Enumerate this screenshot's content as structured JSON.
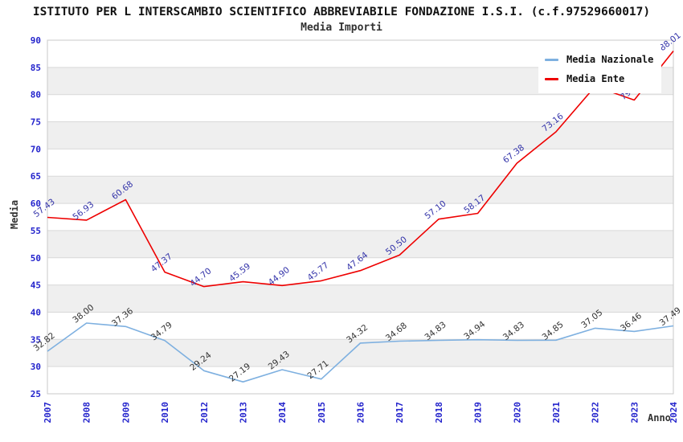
{
  "header": {
    "title": "ISTITUTO PER L INTERSCAMBIO SCIENTIFICO ABBREVIABILE FONDAZIONE I.S.I. (c.f.97529660017)",
    "subtitle": "Media Importi"
  },
  "axes": {
    "y_title": "Media",
    "x_title": "Anno"
  },
  "legend": [
    {
      "label": "Media Nazionale",
      "color": "#7eb0e0"
    },
    {
      "label": "Media Ente",
      "color": "#ee0000"
    }
  ],
  "chart_data": {
    "type": "line",
    "title": "ISTITUTO PER L INTERSCAMBIO SCIENTIFICO ABBREVIABILE FONDAZIONE I.S.I. (c.f.97529660017)",
    "subtitle": "Media Importi",
    "xlabel": "Anno",
    "ylabel": "Media",
    "ylim": [
      25,
      90
    ],
    "ytick_step": 5,
    "grid": "horizontal",
    "background_bands": "alternating white/#efefef per 5 units",
    "legend_position": "top-right",
    "categories": [
      "2007",
      "2008",
      "2009",
      "2010",
      "2012",
      "2013",
      "2014",
      "2015",
      "2016",
      "2017",
      "2018",
      "2019",
      "2020",
      "2021",
      "2022",
      "2023",
      "2024"
    ],
    "series": [
      {
        "name": "Media Nazionale",
        "color": "#7eb0e0",
        "label_color": "#333333",
        "values": [
          32.82,
          38.0,
          37.36,
          34.79,
          29.24,
          27.19,
          29.43,
          27.71,
          34.32,
          34.68,
          34.83,
          34.94,
          34.83,
          34.85,
          37.05,
          36.46,
          37.49
        ],
        "labels": [
          "32.82",
          "38.00",
          "37.36",
          "34.79",
          "29.24",
          "27.19",
          "29.43",
          "27.71",
          "34.32",
          "34.68",
          "34.83",
          "34.94",
          "34.83",
          "34.85",
          "37.05",
          "36.46",
          "37.49"
        ]
      },
      {
        "name": "Media Ente",
        "color": "#ee0000",
        "label_color": "#3535aa",
        "values": [
          57.43,
          56.93,
          60.68,
          47.37,
          44.7,
          45.59,
          44.9,
          45.77,
          47.64,
          50.5,
          57.1,
          58.17,
          67.38,
          73.16,
          81.5,
          79.0,
          88.01
        ],
        "labels": [
          "57.43",
          "56.93",
          "60.68",
          "47.37",
          "44.70",
          "45.59",
          "44.90",
          "45.77",
          "47.64",
          "50.50",
          "57.10",
          "58.17",
          "67.38",
          "73.16",
          "",
          "79.00",
          "88.01"
        ]
      }
    ]
  },
  "colors": {
    "tick_label": "#2323cc",
    "band_gray": "#efefef",
    "gridline": "#d9d9d9",
    "plot_border": "#c9c9c9"
  }
}
